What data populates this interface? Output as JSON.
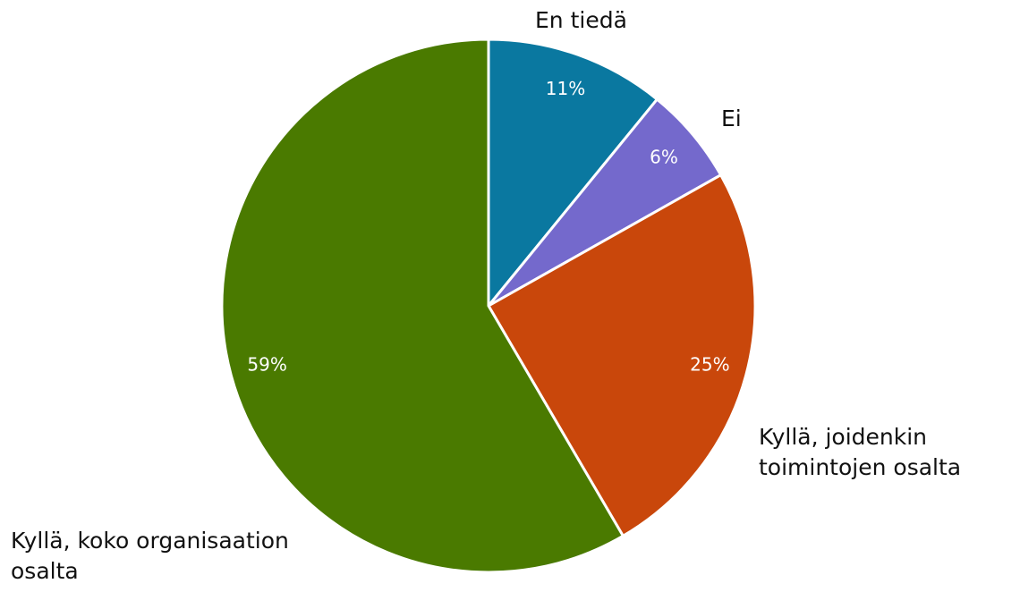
{
  "chart_data": {
    "type": "pie",
    "categories": [
      "En tiedä",
      "Ei",
      "Kyllä, joidenkin toimintojen osalta",
      "Kyllä, koko organisaation osalta"
    ],
    "values": [
      11,
      6,
      25,
      59
    ],
    "value_labels": [
      "11%",
      "6%",
      "25%",
      "59%"
    ],
    "colors": [
      "#0a78a0",
      "#7469cc",
      "#c9470b",
      "#4a7a00"
    ]
  }
}
